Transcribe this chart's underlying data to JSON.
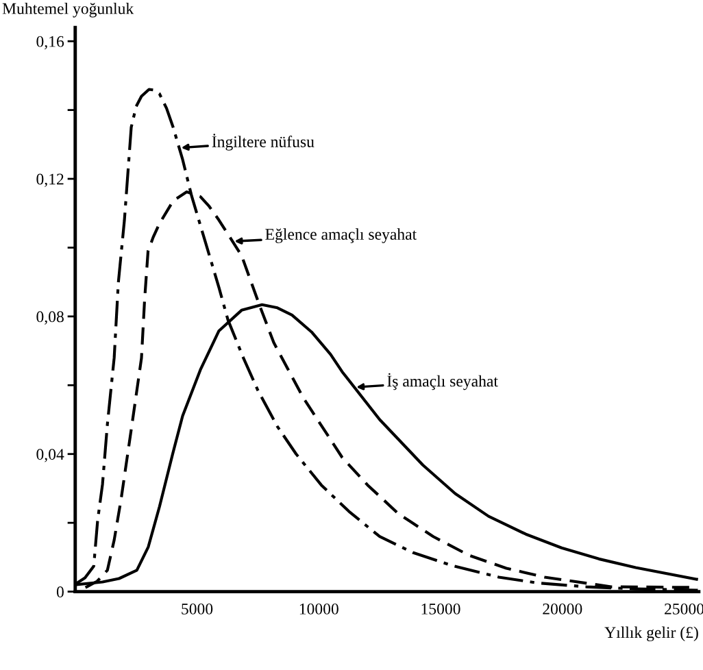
{
  "chart_data": {
    "type": "line",
    "xlabel": "Yıllık gelir (£)",
    "ylabel": "Muhtemel yoğunluk",
    "xlim": [
      0,
      25600
    ],
    "ylim": [
      0,
      0.164
    ],
    "xticks": [
      5000,
      10000,
      15000,
      20000,
      25000
    ],
    "yticks": [
      {
        "value": 0,
        "label": "0"
      },
      {
        "value": 0.02,
        "label": null
      },
      {
        "value": 0.04,
        "label": "0,04"
      },
      {
        "value": 0.06,
        "label": null
      },
      {
        "value": 0.08,
        "label": "0,08"
      },
      {
        "value": 0.1,
        "label": null
      },
      {
        "value": 0.12,
        "label": "0,12"
      },
      {
        "value": 0.14,
        "label": null
      },
      {
        "value": 0.16,
        "label": "0,16"
      }
    ],
    "grid": false,
    "marker": "none",
    "series": [
      {
        "color": "#000000",
        "line_style": "dashdot",
        "x": [
          56,
          400,
          760,
          920,
          1120,
          1320,
          1600,
          1770,
          2020,
          2300,
          2500,
          2720,
          3030,
          3250,
          3460,
          3750,
          4020,
          4410,
          4780,
          5340,
          5900,
          6270,
          6900,
          7500,
          8300,
          9070,
          10100,
          11240,
          12500,
          13880,
          15500,
          17390,
          19000,
          20980,
          23000,
          25560
        ],
        "values": [
          0.0024,
          0.004,
          0.0074,
          0.0207,
          0.0312,
          0.0486,
          0.068,
          0.0898,
          0.108,
          0.135,
          0.141,
          0.144,
          0.146,
          0.1458,
          0.1447,
          0.1405,
          0.135,
          0.1256,
          0.115,
          0.1017,
          0.0884,
          0.079,
          0.068,
          0.0585,
          0.048,
          0.04,
          0.031,
          0.0233,
          0.016,
          0.0113,
          0.0075,
          0.0042,
          0.0025,
          0.0014,
          0.0008,
          0.0004
        ]
      },
      {
        "color": "#000000",
        "line_style": "dashed",
        "x": [
          420,
          900,
          1320,
          1600,
          1880,
          2330,
          2720,
          2850,
          2990,
          3200,
          3460,
          4020,
          4580,
          5140,
          5500,
          5900,
          6830,
          7580,
          8150,
          9350,
          10960,
          12000,
          13260,
          14700,
          16180,
          17700,
          19270,
          22000,
          25560
        ],
        "values": [
          0.0012,
          0.003,
          0.0062,
          0.015,
          0.0267,
          0.0486,
          0.0679,
          0.085,
          0.099,
          0.103,
          0.107,
          0.1136,
          0.1162,
          0.1148,
          0.112,
          0.108,
          0.0977,
          0.083,
          0.0724,
          0.0565,
          0.039,
          0.031,
          0.0227,
          0.016,
          0.0105,
          0.0068,
          0.0042,
          0.0014,
          0.0012
        ]
      },
      {
        "color": "#000000",
        "line_style": "solid",
        "x": [
          0,
          1120,
          1800,
          2530,
          3000,
          3460,
          4000,
          4410,
          5140,
          5900,
          6830,
          7670,
          8300,
          8900,
          9700,
          10480,
          10960,
          12500,
          14270,
          15600,
          16970,
          18500,
          19970,
          21500,
          23010,
          25510
        ],
        "values": [
          0.002,
          0.0028,
          0.0038,
          0.0062,
          0.013,
          0.0247,
          0.04,
          0.0511,
          0.0645,
          0.0758,
          0.0818,
          0.0834,
          0.0825,
          0.0804,
          0.0755,
          0.069,
          0.0639,
          0.05,
          0.0368,
          0.0285,
          0.0219,
          0.0167,
          0.0127,
          0.0095,
          0.007,
          0.0036
        ]
      }
    ],
    "annotations": [
      {
        "text": "İngiltere nüfusu",
        "x": 4270,
        "y": 0.129
      },
      {
        "text": "Eğlence amaçlı seyahat",
        "x": 6460,
        "y": 0.1018
      },
      {
        "text": "İş amaçlı seyahat",
        "x": 11460,
        "y": 0.0594
      }
    ]
  }
}
